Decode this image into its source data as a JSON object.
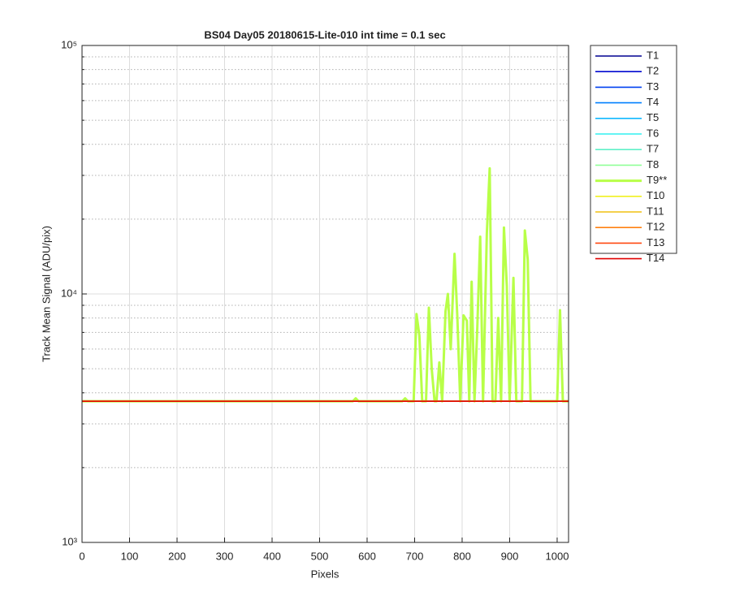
{
  "chart_data": {
    "type": "line",
    "title": "BS04 Day05 20180615-Lite-010 int time = 0.1 sec",
    "xlabel": "Pixels",
    "ylabel": "Track Mean Signal (ADU/pix)",
    "xlim": [
      0,
      1024
    ],
    "xticks": [
      0,
      100,
      200,
      300,
      400,
      500,
      600,
      700,
      800,
      900,
      1000
    ],
    "ylim": [
      1000,
      100000
    ],
    "yscale": "log",
    "yticks": [
      {
        "value": 1000,
        "label": "10³"
      },
      {
        "value": 10000,
        "label": "10⁴"
      },
      {
        "value": 100000,
        "label": "10⁵"
      }
    ],
    "yminorticks": [
      2000,
      3000,
      4000,
      5000,
      6000,
      7000,
      8000,
      9000,
      20000,
      30000,
      40000,
      50000,
      60000,
      70000,
      80000,
      90000
    ],
    "grid": true,
    "legend": "outside-right",
    "series": [
      {
        "name": "T1",
        "color": "#000090",
        "x": [
          0,
          1024
        ],
        "values": [
          3700,
          3700
        ]
      },
      {
        "name": "T2",
        "color": "#0008d0",
        "x": [
          0,
          1024
        ],
        "values": [
          3700,
          3700
        ]
      },
      {
        "name": "T3",
        "color": "#0040f0",
        "x": [
          0,
          1024
        ],
        "values": [
          3700,
          3700
        ]
      },
      {
        "name": "T4",
        "color": "#0080ff",
        "x": [
          0,
          1024
        ],
        "values": [
          3700,
          3700
        ]
      },
      {
        "name": "T5",
        "color": "#10b8ff",
        "x": [
          0,
          1024
        ],
        "values": [
          3700,
          3700
        ]
      },
      {
        "name": "T6",
        "color": "#30f0f0",
        "x": [
          0,
          1024
        ],
        "values": [
          3700,
          3700
        ]
      },
      {
        "name": "T7",
        "color": "#60f0c8",
        "x": [
          0,
          1024
        ],
        "values": [
          3700,
          3700
        ]
      },
      {
        "name": "T8",
        "color": "#90ff98",
        "x": [
          0,
          1024
        ],
        "values": [
          3700,
          3700
        ]
      },
      {
        "name": "T9**",
        "color": "#b8ff48",
        "linewidth": 3,
        "x": [
          0,
          570,
          576,
          582,
          674,
          680,
          686,
          698,
          704,
          710,
          716,
          724,
          730,
          736,
          742,
          746,
          752,
          758,
          765,
          770,
          776,
          784,
          790,
          796,
          803,
          810,
          815,
          820,
          826,
          832,
          838,
          844,
          852,
          858,
          864,
          870,
          876,
          882,
          888,
          894,
          900,
          908,
          914,
          926,
          932,
          938,
          944,
          1000,
          1006,
          1012,
          1024
        ],
        "values": [
          3700,
          3700,
          3800,
          3700,
          3700,
          3800,
          3700,
          3700,
          8300,
          6800,
          3700,
          3700,
          8800,
          5000,
          3700,
          3700,
          5300,
          3700,
          8500,
          10000,
          6000,
          14500,
          8000,
          3700,
          8200,
          7800,
          3700,
          11200,
          3700,
          7400,
          17000,
          3700,
          17500,
          32000,
          3700,
          3700,
          8000,
          3700,
          18500,
          10800,
          3700,
          11600,
          3700,
          3700,
          18000,
          13800,
          3700,
          3700,
          8600,
          3700,
          3700
        ]
      },
      {
        "name": "T10",
        "color": "#f0f020",
        "x": [
          0,
          1024
        ],
        "values": [
          3700,
          3700
        ]
      },
      {
        "name": "T11",
        "color": "#f0c010",
        "x": [
          0,
          1024
        ],
        "values": [
          3700,
          3700
        ]
      },
      {
        "name": "T12",
        "color": "#ff8010",
        "x": [
          0,
          1024
        ],
        "values": [
          3700,
          3700
        ]
      },
      {
        "name": "T13",
        "color": "#ff4810",
        "x": [
          0,
          1024
        ],
        "values": [
          3700,
          3700
        ]
      },
      {
        "name": "T14",
        "color": "#e00000",
        "x": [
          0,
          1024
        ],
        "values": [
          3700,
          3700
        ]
      }
    ]
  }
}
